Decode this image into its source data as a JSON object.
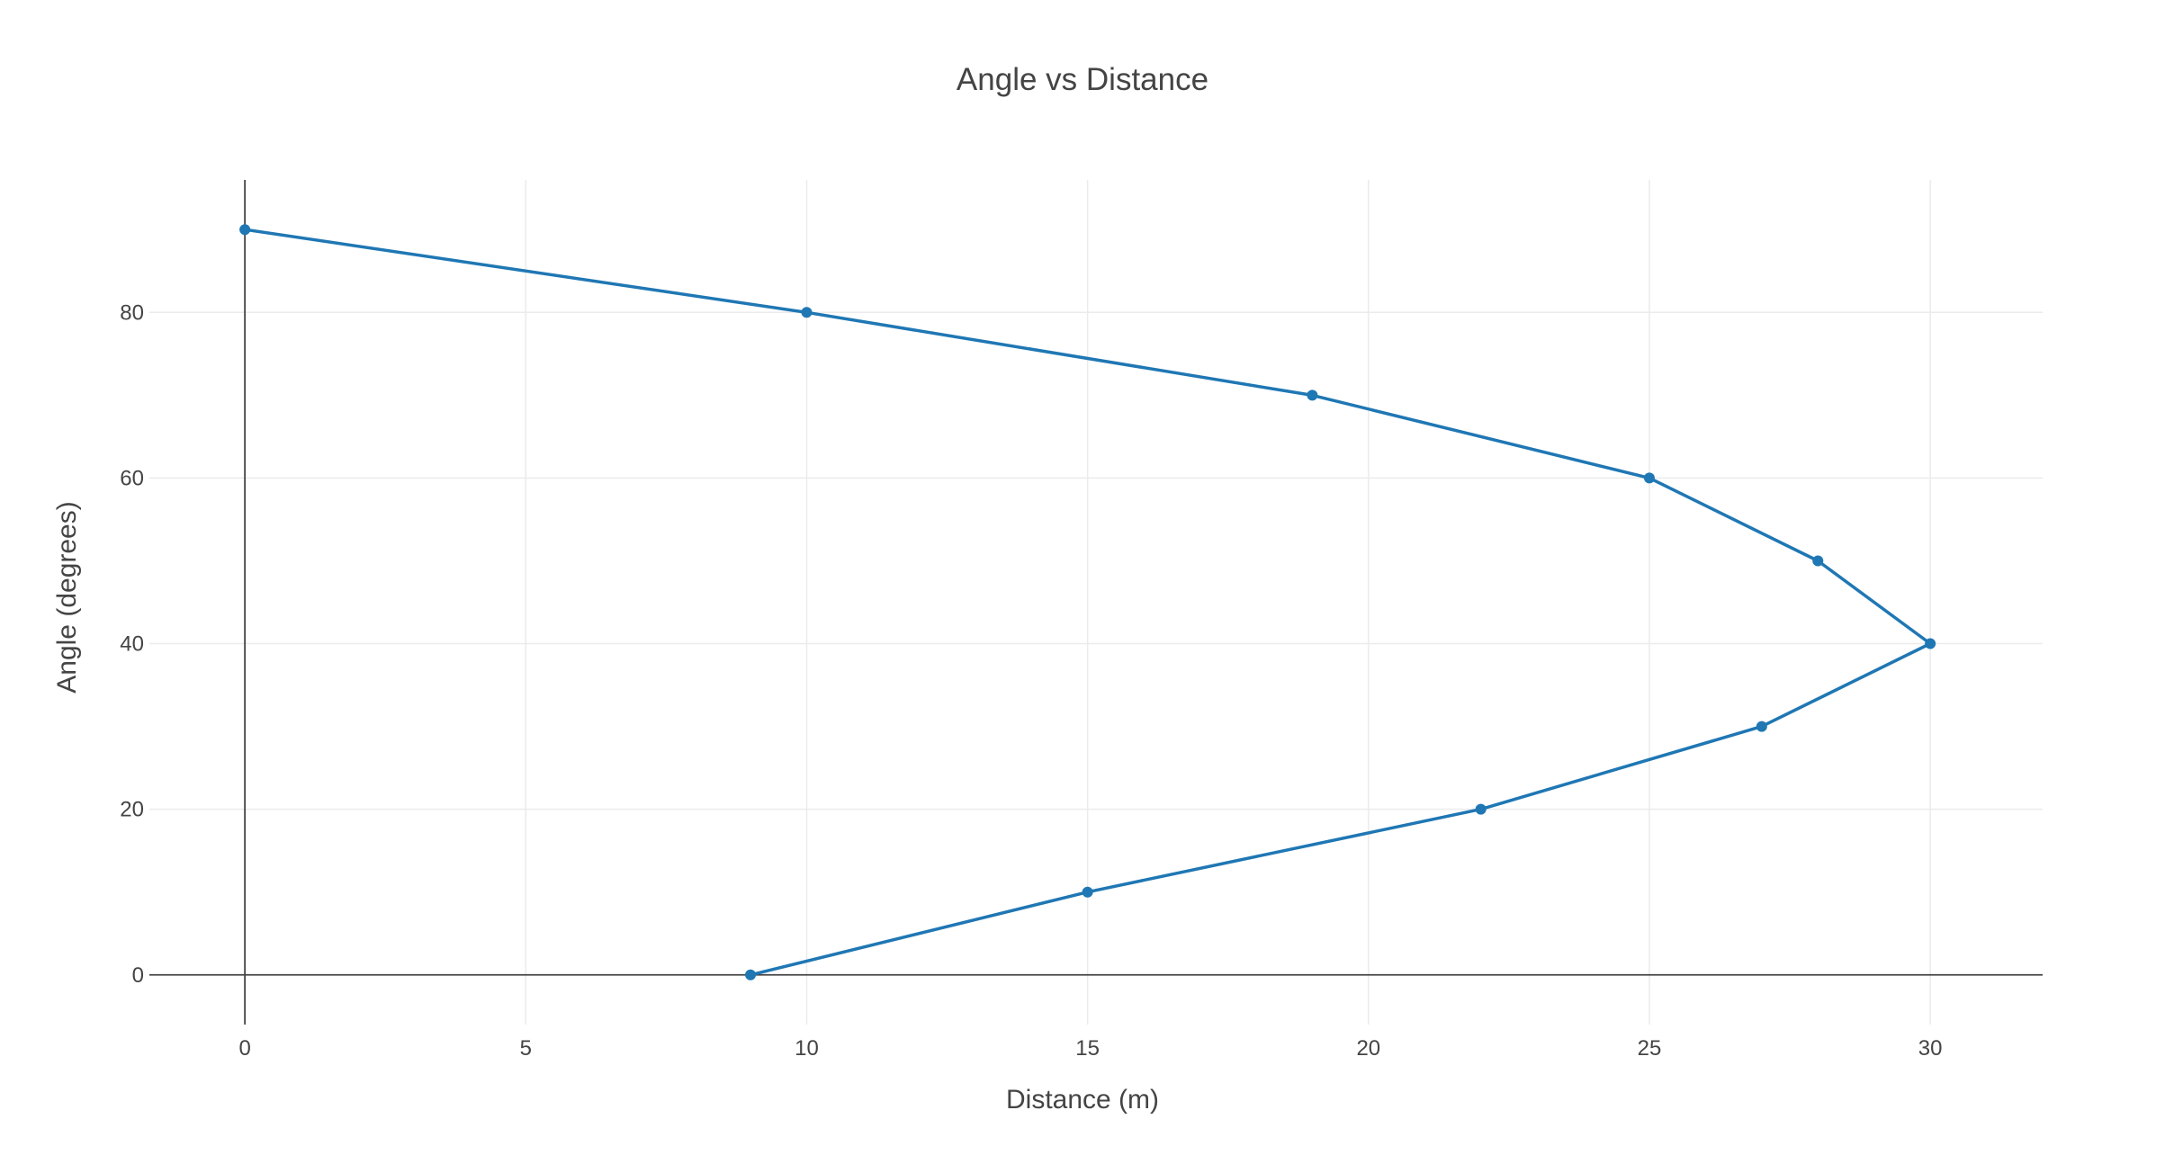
{
  "chart_data": {
    "type": "line",
    "title": "Angle vs Distance",
    "xlabel": "Distance (m)",
    "ylabel": "Angle (degrees)",
    "xlim": [
      -1.7,
      32
    ],
    "ylim": [
      -6,
      96
    ],
    "x_ticks": [
      0,
      5,
      10,
      15,
      20,
      25,
      30
    ],
    "y_ticks": [
      0,
      20,
      40,
      60,
      80
    ],
    "grid": true,
    "legend": "none",
    "series": [
      {
        "mode": "lines+markers",
        "color": "#1f77b4",
        "x": [
          0,
          10,
          19,
          25,
          28,
          30,
          27,
          22,
          15,
          9
        ],
        "y": [
          90,
          80,
          70,
          60,
          50,
          40,
          30,
          20,
          10,
          0
        ]
      }
    ]
  }
}
